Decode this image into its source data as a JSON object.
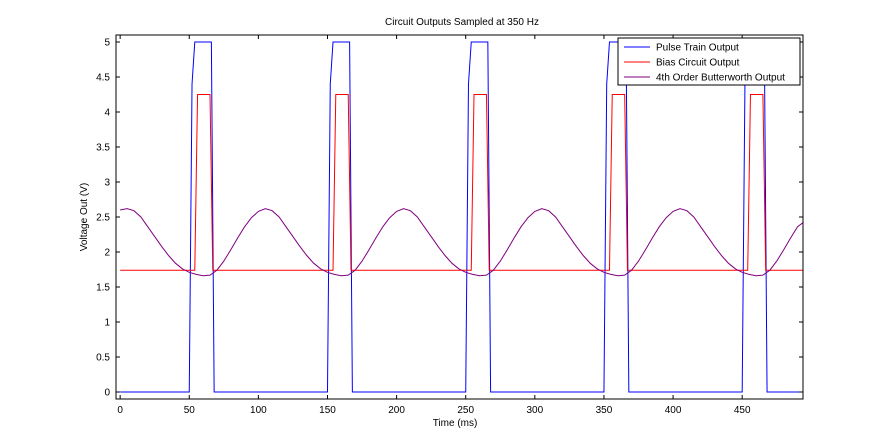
{
  "chart_data": {
    "type": "line",
    "title": "Circuit Outputs Sampled at 350 Hz",
    "xlabel": "Time (ms)",
    "ylabel": "Voltage Out (V)",
    "xlim": [
      -3,
      494
    ],
    "ylim": [
      -0.1,
      5.1
    ],
    "xticks": [
      0,
      50,
      100,
      150,
      200,
      250,
      300,
      350,
      400,
      450
    ],
    "yticks": [
      0,
      0.5,
      1,
      1.5,
      2,
      2.5,
      3,
      3.5,
      4,
      4.5,
      5
    ],
    "xtick_labels": [
      "0",
      "50",
      "100",
      "150",
      "200",
      "250",
      "300",
      "350",
      "400",
      "450"
    ],
    "ytick_labels": [
      "0",
      "0.5",
      "1",
      "1.5",
      "2",
      "2.5",
      "3",
      "3.5",
      "4",
      "4.5",
      "5"
    ],
    "grid": false,
    "legend_position": "top-right",
    "series": [
      {
        "name": "Pulse Train Output",
        "color": "#0000ff",
        "x": [
          0,
          50,
          52,
          54,
          66,
          68,
          150,
          152,
          154,
          166,
          168,
          250,
          252,
          254,
          266,
          268,
          350,
          352,
          354,
          366,
          368,
          450,
          452,
          454,
          466,
          468,
          494
        ],
        "y": [
          0,
          0,
          4.4,
          5,
          5,
          0,
          0,
          4.4,
          5,
          5,
          0,
          0,
          4.4,
          5,
          5,
          0,
          0,
          4.4,
          5,
          5,
          0,
          0,
          4.4,
          5,
          5,
          0,
          0
        ]
      },
      {
        "name": "Bias Circuit Output",
        "color": "#ff0000",
        "x": [
          0,
          54,
          55,
          56,
          57,
          64,
          65,
          66,
          67,
          154,
          155,
          156,
          157,
          164,
          165,
          166,
          167,
          254,
          255,
          256,
          257,
          264,
          265,
          266,
          267,
          354,
          355,
          356,
          357,
          364,
          365,
          366,
          367,
          454,
          455,
          456,
          457,
          464,
          465,
          466,
          467,
          494
        ],
        "y": [
          1.74,
          1.74,
          3.0,
          4.25,
          4.25,
          4.25,
          4.25,
          3.0,
          1.74,
          1.74,
          3.0,
          4.25,
          4.25,
          4.25,
          4.25,
          3.0,
          1.74,
          1.74,
          3.0,
          4.25,
          4.25,
          4.25,
          4.25,
          3.0,
          1.74,
          1.74,
          3.0,
          4.25,
          4.25,
          4.25,
          4.25,
          3.0,
          1.74,
          1.74,
          3.0,
          4.25,
          4.25,
          4.25,
          4.25,
          3.0,
          1.74,
          1.74
        ]
      },
      {
        "name": "4th Order Butterworth Output",
        "color": "#800080",
        "x": [
          0,
          5,
          10,
          15,
          20,
          25,
          30,
          35,
          40,
          45,
          50,
          55,
          60,
          65,
          70,
          75,
          80,
          85,
          90,
          95,
          100,
          105,
          110,
          115,
          120,
          125,
          130,
          135,
          140,
          145,
          150,
          155,
          160,
          165,
          170,
          175,
          180,
          185,
          190,
          195,
          200,
          205,
          210,
          215,
          220,
          225,
          230,
          235,
          240,
          245,
          250,
          255,
          260,
          265,
          270,
          275,
          280,
          285,
          290,
          295,
          300,
          305,
          310,
          315,
          320,
          325,
          330,
          335,
          340,
          345,
          350,
          355,
          360,
          365,
          370,
          375,
          380,
          385,
          390,
          395,
          400,
          405,
          410,
          415,
          420,
          425,
          430,
          435,
          440,
          445,
          450,
          455,
          460,
          465,
          470,
          475,
          480,
          485,
          490,
          494
        ],
        "y": [
          2.6,
          2.62,
          2.59,
          2.5,
          2.36,
          2.22,
          2.08,
          1.95,
          1.84,
          1.76,
          1.71,
          1.68,
          1.66,
          1.67,
          1.74,
          1.87,
          2.03,
          2.2,
          2.36,
          2.49,
          2.58,
          2.62,
          2.59,
          2.5,
          2.36,
          2.22,
          2.08,
          1.95,
          1.84,
          1.76,
          1.71,
          1.68,
          1.66,
          1.67,
          1.74,
          1.87,
          2.03,
          2.2,
          2.36,
          2.49,
          2.58,
          2.62,
          2.59,
          2.5,
          2.36,
          2.22,
          2.08,
          1.95,
          1.84,
          1.76,
          1.71,
          1.68,
          1.66,
          1.67,
          1.74,
          1.87,
          2.03,
          2.2,
          2.36,
          2.49,
          2.58,
          2.62,
          2.59,
          2.5,
          2.36,
          2.22,
          2.08,
          1.95,
          1.84,
          1.76,
          1.71,
          1.68,
          1.66,
          1.67,
          1.74,
          1.87,
          2.03,
          2.2,
          2.36,
          2.49,
          2.58,
          2.62,
          2.59,
          2.5,
          2.36,
          2.22,
          2.08,
          1.95,
          1.84,
          1.76,
          1.71,
          1.68,
          1.66,
          1.67,
          1.74,
          1.87,
          2.03,
          2.2,
          2.36,
          2.42
        ]
      }
    ]
  }
}
